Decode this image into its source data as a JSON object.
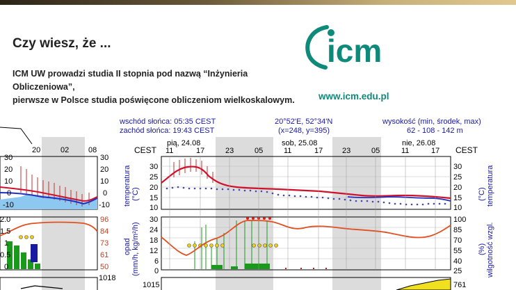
{
  "banner": {
    "headline": "Czy wiesz, że ...",
    "line1": "ICM UW prowadzi studia II stopnia pod nazwą “Inżynieria Obliczeniowa”,",
    "line2": "pierwsze w Polsce studia poświęcone obliczeniom wielkoskalowym.",
    "logo_text": "icm",
    "url": "www.icm.edu.pl",
    "brand_color": "#0f8a7a"
  },
  "meteogram": {
    "sunrise": "wschód słońca: 05:35 CEST",
    "sunset": "zachód słońca: 19:43 CEST",
    "coords": "20°52'E, 52°34'N",
    "grid": "(x=248, y=395)",
    "height_title": "wysokość (min, środek, max)",
    "height_values": "62 - 108 - 142 m",
    "tz_left": "CEST",
    "tz_right": "CEST",
    "days": [
      "pią, 24.08",
      "sob, 25.08",
      "nie, 26.08"
    ],
    "hours": [
      "11",
      "17",
      "23",
      "05",
      "11",
      "17",
      "23",
      "05",
      "11",
      "17"
    ],
    "left_hours": [
      "20",
      "02",
      "08"
    ],
    "temp_axis_label": "temperatura",
    "temp_unit": "(°C)",
    "temp_ticks": [
      "30",
      "25",
      "20",
      "15",
      "10"
    ],
    "left_temp_ticks": [
      "30",
      "20",
      "10",
      "0",
      "-10"
    ],
    "precip_axis_label": "opad",
    "precip_unit": "(mm/h, kg/m²/h)",
    "precip_ticks": [
      "30",
      "24",
      "18",
      "12",
      "6",
      "0"
    ],
    "hum_axis_label": "wilgotność wzgl.",
    "hum_unit": "(%)",
    "hum_ticks": [
      "100",
      "85",
      "70",
      "55",
      "40",
      "25"
    ],
    "left_precip_ticks": [
      "2.0",
      "1.5",
      "1",
      "0.5",
      "0"
    ],
    "left_hum_ticks": [
      "96",
      "84",
      "73",
      "61",
      "50"
    ],
    "left_pressure_top": "1018",
    "pressure_tick": "1015",
    "pressure_right_tick": "761"
  }
}
